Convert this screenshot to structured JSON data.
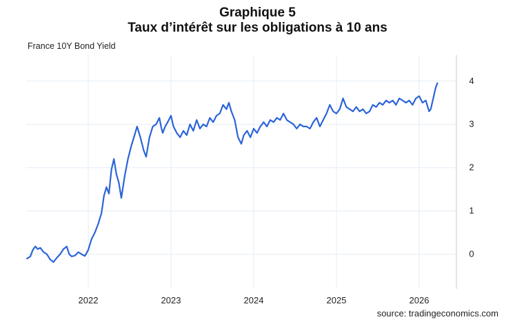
{
  "title_line1": "Graphique 5",
  "title_line2": "Taux d’intérêt sur les obligations à 10 ans",
  "subtitle": "France 10Y Bond Yield",
  "source": "source: tradingeconomics.com",
  "colors": {
    "line": "#2b64d8",
    "grid": "#e3edf5",
    "axis": "#cccccc",
    "text": "#222222"
  },
  "chart_data": {
    "type": "line",
    "title": "France 10Y Bond Yield",
    "xlabel": "",
    "ylabel": "",
    "x_ticks": [
      "2022",
      "2023",
      "2024",
      "2025",
      "2026"
    ],
    "y_ticks": [
      "0",
      "1",
      "2",
      "3",
      "4"
    ],
    "ylim": [
      -0.8,
      4.6
    ],
    "xlim": [
      2021.25,
      2026.45
    ],
    "grid": true,
    "series": [
      {
        "values": [
          [
            2021.26,
            -0.1
          ],
          [
            2021.3,
            -0.05
          ],
          [
            2021.33,
            0.1
          ],
          [
            2021.36,
            0.18
          ],
          [
            2021.39,
            0.12
          ],
          [
            2021.42,
            0.15
          ],
          [
            2021.46,
            0.05
          ],
          [
            2021.5,
            0.0
          ],
          [
            2021.54,
            -0.12
          ],
          [
            2021.58,
            -0.18
          ],
          [
            2021.62,
            -0.08
          ],
          [
            2021.66,
            0.0
          ],
          [
            2021.7,
            0.12
          ],
          [
            2021.74,
            0.18
          ],
          [
            2021.77,
            0.0
          ],
          [
            2021.8,
            -0.05
          ],
          [
            2021.84,
            -0.03
          ],
          [
            2021.88,
            0.05
          ],
          [
            2021.92,
            0.0
          ],
          [
            2021.96,
            -0.04
          ],
          [
            2022.0,
            0.1
          ],
          [
            2022.04,
            0.35
          ],
          [
            2022.08,
            0.5
          ],
          [
            2022.12,
            0.7
          ],
          [
            2022.16,
            0.95
          ],
          [
            2022.19,
            1.35
          ],
          [
            2022.22,
            1.55
          ],
          [
            2022.25,
            1.4
          ],
          [
            2022.28,
            1.95
          ],
          [
            2022.31,
            2.2
          ],
          [
            2022.34,
            1.85
          ],
          [
            2022.37,
            1.65
          ],
          [
            2022.4,
            1.3
          ],
          [
            2022.44,
            1.8
          ],
          [
            2022.48,
            2.2
          ],
          [
            2022.52,
            2.5
          ],
          [
            2022.56,
            2.75
          ],
          [
            2022.59,
            2.95
          ],
          [
            2022.63,
            2.7
          ],
          [
            2022.67,
            2.4
          ],
          [
            2022.7,
            2.25
          ],
          [
            2022.74,
            2.7
          ],
          [
            2022.78,
            2.95
          ],
          [
            2022.82,
            3.0
          ],
          [
            2022.86,
            3.15
          ],
          [
            2022.88,
            2.95
          ],
          [
            2022.9,
            2.8
          ],
          [
            2022.93,
            2.95
          ],
          [
            2022.96,
            3.05
          ],
          [
            2023.0,
            3.2
          ],
          [
            2023.03,
            2.95
          ],
          [
            2023.07,
            2.8
          ],
          [
            2023.11,
            2.7
          ],
          [
            2023.15,
            2.85
          ],
          [
            2023.19,
            2.75
          ],
          [
            2023.23,
            3.0
          ],
          [
            2023.27,
            2.85
          ],
          [
            2023.31,
            3.1
          ],
          [
            2023.35,
            2.9
          ],
          [
            2023.39,
            3.0
          ],
          [
            2023.43,
            2.95
          ],
          [
            2023.47,
            3.15
          ],
          [
            2023.51,
            3.05
          ],
          [
            2023.55,
            3.2
          ],
          [
            2023.59,
            3.25
          ],
          [
            2023.63,
            3.45
          ],
          [
            2023.67,
            3.35
          ],
          [
            2023.7,
            3.5
          ],
          [
            2023.73,
            3.3
          ],
          [
            2023.77,
            3.1
          ],
          [
            2023.81,
            2.7
          ],
          [
            2023.85,
            2.55
          ],
          [
            2023.88,
            2.75
          ],
          [
            2023.92,
            2.85
          ],
          [
            2023.96,
            2.7
          ],
          [
            2024.0,
            2.9
          ],
          [
            2024.04,
            2.8
          ],
          [
            2024.08,
            2.95
          ],
          [
            2024.12,
            3.05
          ],
          [
            2024.16,
            2.95
          ],
          [
            2024.2,
            3.1
          ],
          [
            2024.24,
            3.05
          ],
          [
            2024.28,
            3.15
          ],
          [
            2024.32,
            3.1
          ],
          [
            2024.36,
            3.25
          ],
          [
            2024.4,
            3.1
          ],
          [
            2024.44,
            3.05
          ],
          [
            2024.48,
            3.0
          ],
          [
            2024.52,
            2.9
          ],
          [
            2024.56,
            3.0
          ],
          [
            2024.6,
            2.95
          ],
          [
            2024.64,
            2.95
          ],
          [
            2024.68,
            2.9
          ],
          [
            2024.72,
            3.05
          ],
          [
            2024.76,
            3.15
          ],
          [
            2024.8,
            2.95
          ],
          [
            2024.84,
            3.1
          ],
          [
            2024.88,
            3.25
          ],
          [
            2024.92,
            3.45
          ],
          [
            2024.96,
            3.3
          ],
          [
            2025.0,
            3.25
          ],
          [
            2025.04,
            3.35
          ],
          [
            2025.08,
            3.6
          ],
          [
            2025.12,
            3.4
          ],
          [
            2025.16,
            3.35
          ],
          [
            2025.2,
            3.3
          ],
          [
            2025.24,
            3.4
          ],
          [
            2025.28,
            3.3
          ],
          [
            2025.32,
            3.35
          ],
          [
            2025.36,
            3.25
          ],
          [
            2025.4,
            3.3
          ],
          [
            2025.44,
            3.45
          ],
          [
            2025.48,
            3.4
          ],
          [
            2025.52,
            3.5
          ],
          [
            2025.56,
            3.45
          ],
          [
            2025.6,
            3.55
          ],
          [
            2025.64,
            3.5
          ],
          [
            2025.68,
            3.55
          ],
          [
            2025.72,
            3.45
          ],
          [
            2025.76,
            3.6
          ],
          [
            2025.8,
            3.55
          ],
          [
            2025.84,
            3.5
          ],
          [
            2025.88,
            3.55
          ],
          [
            2025.92,
            3.45
          ],
          [
            2025.96,
            3.6
          ],
          [
            2026.0,
            3.65
          ],
          [
            2026.04,
            3.5
          ],
          [
            2026.08,
            3.55
          ],
          [
            2026.12,
            3.3
          ],
          [
            2026.14,
            3.35
          ],
          [
            2026.17,
            3.6
          ],
          [
            2026.2,
            3.85
          ],
          [
            2026.22,
            3.95
          ]
        ]
      }
    ]
  }
}
